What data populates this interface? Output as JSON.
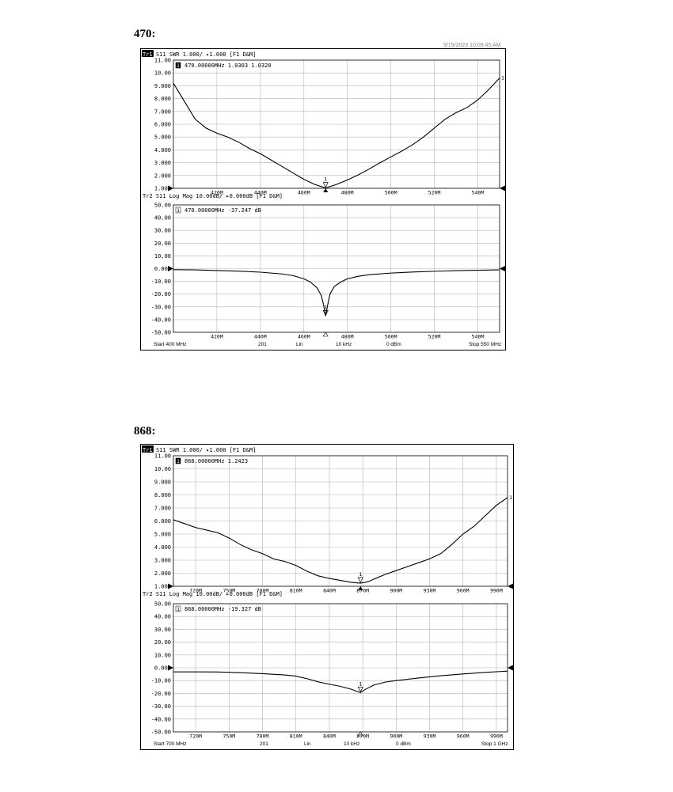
{
  "sections": [
    {
      "title": "470:",
      "header_overlay": "9/19/2023 10:09:45 AM",
      "trace1": {
        "badge": "Tr1",
        "header_rest": "S11 SWR 1.000/ ▸1.000 [F1 D&M]",
        "marker_id": "1",
        "marker_readout": "470.00000MHz  1.0303   1.0320"
      },
      "trace2": {
        "header": "Tr2 S11 Log Mag 10.00dB/ ▸0.000dB [F1 D&M]",
        "marker_id": "1",
        "marker_readout": "470.00000MHz -37.247 dB"
      },
      "footer": {
        "start": "Start 400 MHz",
        "points": "201",
        "sweep": "Lin",
        "ifbw": "10 kHz",
        "power": "0 dBm",
        "stop": "Stop 550 MHz"
      }
    },
    {
      "title": "868:",
      "header_overlay": "",
      "trace1": {
        "badge": "Tr1",
        "header_rest": "S11 SWR 1.000/ ▸1.000 [F1 D&M]",
        "marker_id": "1",
        "marker_readout": "868.00000MHz  1.2423"
      },
      "trace2": {
        "header": "Tr2 S11 Log Mag 10.00dB/ ▸0.000dB [F1 D&M]",
        "marker_id": "1",
        "marker_readout": "868.00000MHz -19.327 dB"
      },
      "footer": {
        "start": "Start 700 MHz",
        "points": "201",
        "sweep": "Lin",
        "ifbw": "10 kHz",
        "power": "0 dBm",
        "stop": "Stop 1 GHz"
      }
    }
  ],
  "chart_data": [
    {
      "type": "line",
      "title": "S11 SWR 1.000/ ▸1.000 [F1 D&M]",
      "xlim": [
        400,
        550
      ],
      "ylim": [
        1,
        11
      ],
      "x_ticks": [
        420,
        440,
        460,
        480,
        500,
        520,
        540
      ],
      "x_tick_labels": [
        "420M",
        "440M",
        "460M",
        "480M",
        "500M",
        "520M",
        "540M"
      ],
      "y_ticks": [
        1,
        2,
        3,
        4,
        5,
        6,
        7,
        8,
        9,
        10,
        11
      ],
      "y_tick_labels": [
        "1.000",
        "2.000",
        "3.000",
        "4.000",
        "5.000",
        "6.000",
        "7.000",
        "8.000",
        "9.000",
        "10.00",
        "11.00"
      ],
      "grid": true,
      "marker": {
        "x": 470,
        "y": 1.03,
        "label": "1"
      },
      "end_label": "1",
      "series": [
        {
          "x": [
            400,
            405,
            410,
            415,
            420,
            425,
            430,
            435,
            440,
            445,
            450,
            455,
            460,
            465,
            470,
            475,
            480,
            485,
            490,
            495,
            500,
            505,
            510,
            515,
            520,
            525,
            530,
            535,
            540,
            545,
            550
          ],
          "y": [
            9.2,
            7.8,
            6.4,
            5.7,
            5.3,
            5.0,
            4.6,
            4.1,
            3.7,
            3.2,
            2.7,
            2.2,
            1.7,
            1.3,
            1.03,
            1.3,
            1.65,
            2.05,
            2.5,
            3.0,
            3.45,
            3.9,
            4.4,
            5.0,
            5.7,
            6.4,
            6.9,
            7.3,
            7.9,
            8.7,
            9.6
          ]
        }
      ]
    },
    {
      "type": "line",
      "title": "S11 Log Mag 10.00dB/ ▸0.000dB [F1 D&M]",
      "xlim": [
        400,
        550
      ],
      "ylim": [
        -50,
        50
      ],
      "x_ticks": [
        420,
        440,
        460,
        480,
        500,
        520,
        540
      ],
      "x_tick_labels": [
        "420M",
        "440M",
        "460M",
        "480M",
        "500M",
        "520M",
        "540M"
      ],
      "y_ticks": [
        -50,
        -40,
        -30,
        -20,
        -10,
        0,
        10,
        20,
        30,
        40,
        50
      ],
      "y_tick_labels": [
        "-50.00",
        "-40.00",
        "-30.00",
        "-20.00",
        "-10.00",
        "0.000",
        "10.00",
        "20.00",
        "30.00",
        "40.00",
        "50.00"
      ],
      "grid": true,
      "marker": {
        "x": 470,
        "y": -37.247,
        "label": "1"
      },
      "series": [
        {
          "x": [
            400,
            410,
            420,
            430,
            440,
            450,
            455,
            460,
            463,
            466,
            468,
            469,
            470,
            471,
            472,
            474,
            477,
            480,
            485,
            490,
            500,
            510,
            520,
            530,
            540,
            550
          ],
          "y": [
            -0.8,
            -1.0,
            -1.5,
            -2.0,
            -2.8,
            -4.2,
            -5.5,
            -8.0,
            -10.5,
            -15.0,
            -21.0,
            -28.0,
            -37.2,
            -28.0,
            -20.0,
            -14.0,
            -10.5,
            -8.0,
            -6.0,
            -4.8,
            -3.5,
            -2.7,
            -2.1,
            -1.6,
            -1.3,
            -1.0
          ]
        }
      ]
    },
    {
      "type": "line",
      "title": "S11 SWR 1.000/ ▸1.000 [F1 D&M]",
      "xlim": [
        700,
        1000
      ],
      "ylim": [
        1,
        11
      ],
      "x_ticks": [
        720,
        750,
        780,
        810,
        840,
        870,
        900,
        930,
        960,
        990
      ],
      "x_tick_labels": [
        "720M",
        "750M",
        "780M",
        "810M",
        "840M",
        "870M",
        "900M",
        "930M",
        "960M",
        "990M"
      ],
      "y_ticks": [
        1,
        2,
        3,
        4,
        5,
        6,
        7,
        8,
        9,
        10,
        11
      ],
      "y_tick_labels": [
        "1.000",
        "2.000",
        "3.000",
        "4.000",
        "5.000",
        "6.000",
        "7.000",
        "8.000",
        "9.000",
        "10.00",
        "11.00"
      ],
      "grid": true,
      "marker": {
        "x": 868,
        "y": 1.2423,
        "label": "1"
      },
      "end_label": "1",
      "series": [
        {
          "x": [
            700,
            710,
            720,
            730,
            740,
            750,
            760,
            770,
            780,
            790,
            800,
            810,
            820,
            830,
            840,
            850,
            860,
            868,
            875,
            880,
            890,
            900,
            910,
            920,
            930,
            940,
            950,
            960,
            970,
            980,
            990,
            1000
          ],
          "y": [
            6.1,
            5.8,
            5.5,
            5.3,
            5.1,
            4.7,
            4.2,
            3.8,
            3.5,
            3.1,
            2.9,
            2.6,
            2.15,
            1.8,
            1.6,
            1.45,
            1.3,
            1.24,
            1.35,
            1.55,
            1.9,
            2.2,
            2.5,
            2.8,
            3.1,
            3.5,
            4.2,
            5.0,
            5.6,
            6.4,
            7.2,
            7.8
          ]
        }
      ]
    },
    {
      "type": "line",
      "title": "S11 Log Mag 10.00dB/ ▸0.000dB [F1 D&M]",
      "xlim": [
        700,
        1000
      ],
      "ylim": [
        -50,
        50
      ],
      "x_ticks": [
        720,
        750,
        780,
        810,
        840,
        870,
        900,
        930,
        960,
        990
      ],
      "x_tick_labels": [
        "720M",
        "750M",
        "780M",
        "810M",
        "840M",
        "870M",
        "900M",
        "930M",
        "960M",
        "990M"
      ],
      "y_ticks": [
        -50,
        -40,
        -30,
        -20,
        -10,
        0,
        10,
        20,
        30,
        40,
        50
      ],
      "y_tick_labels": [
        "-50.00",
        "-40.00",
        "-30.00",
        "-20.00",
        "-10.00",
        "0.000",
        "10.00",
        "20.00",
        "30.00",
        "40.00",
        "50.00"
      ],
      "grid": true,
      "marker": {
        "x": 868,
        "y": -19.327,
        "label": "1"
      },
      "series": [
        {
          "x": [
            700,
            720,
            740,
            760,
            780,
            800,
            810,
            820,
            830,
            840,
            850,
            860,
            865,
            868,
            872,
            880,
            890,
            900,
            920,
            940,
            960,
            980,
            1000
          ],
          "y": [
            -3.2,
            -3.2,
            -3.3,
            -3.8,
            -4.6,
            -5.6,
            -6.5,
            -8.5,
            -11.0,
            -12.8,
            -14.5,
            -16.8,
            -18.5,
            -19.3,
            -17.0,
            -13.5,
            -11.2,
            -10.0,
            -8.0,
            -6.2,
            -4.8,
            -3.6,
            -2.6
          ]
        }
      ]
    }
  ]
}
